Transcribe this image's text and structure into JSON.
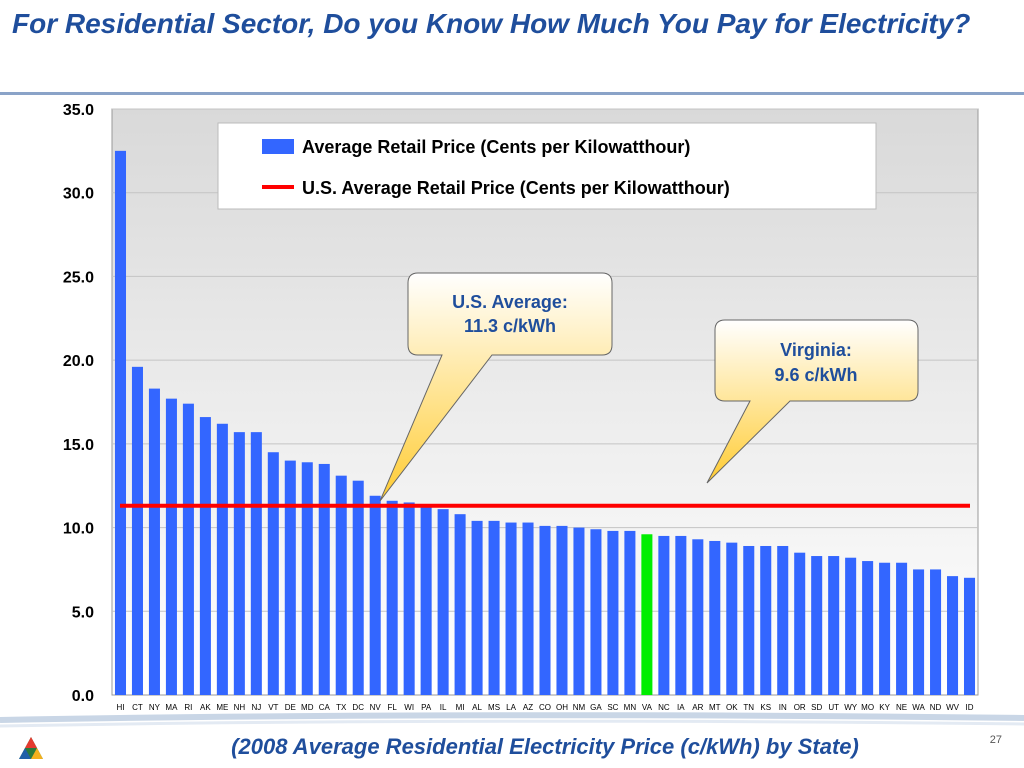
{
  "slide": {
    "title": "For Residential Sector, Do you Know How Much You Pay for Electricity?",
    "footer": "(2008 Average Residential Electricity Price (c/kWh) by State)",
    "page_number": "27"
  },
  "chart_data": {
    "type": "bar",
    "categories": [
      "HI",
      "CT",
      "NY",
      "MA",
      "RI",
      "AK",
      "ME",
      "NH",
      "NJ",
      "VT",
      "DE",
      "MD",
      "CA",
      "TX",
      "DC",
      "NV",
      "FL",
      "WI",
      "PA",
      "IL",
      "MI",
      "AL",
      "MS",
      "LA",
      "AZ",
      "CO",
      "OH",
      "NM",
      "GA",
      "SC",
      "MN",
      "VA",
      "NC",
      "IA",
      "AR",
      "MT",
      "OK",
      "TN",
      "KS",
      "IN",
      "OR",
      "SD",
      "UT",
      "WY",
      "MO",
      "KY",
      "NE",
      "WA",
      "ND",
      "WV",
      "ID"
    ],
    "series": [
      {
        "name": "Average Retail Price (Cents per Kilowatthour)",
        "color": "#3366ff",
        "values": [
          32.5,
          19.6,
          18.3,
          17.7,
          17.4,
          16.6,
          16.2,
          15.7,
          15.7,
          14.5,
          14.0,
          13.9,
          13.8,
          13.1,
          12.8,
          11.9,
          11.6,
          11.5,
          11.3,
          11.1,
          10.8,
          10.4,
          10.4,
          10.3,
          10.3,
          10.1,
          10.1,
          10.0,
          9.9,
          9.8,
          9.8,
          9.6,
          9.5,
          9.5,
          9.3,
          9.2,
          9.1,
          8.9,
          8.9,
          8.9,
          8.5,
          8.3,
          8.3,
          8.2,
          8.0,
          7.9,
          7.9,
          7.5,
          7.5,
          7.1,
          7.0
        ]
      },
      {
        "name": "U.S. Average Retail Price (Cents per Kilowatthour)",
        "color": "#ff0000",
        "value": 11.3
      }
    ],
    "highlight": {
      "category": "VA",
      "color": "#00ee00"
    },
    "ylim": [
      0,
      35
    ],
    "yticks": [
      "0.0",
      "5.0",
      "10.0",
      "15.0",
      "20.0",
      "25.0",
      "30.0",
      "35.0"
    ],
    "grid": true,
    "legend_position": "top",
    "annotations": [
      {
        "line1": "U.S. Average:",
        "line2": "11.3 c/kWh"
      },
      {
        "line1": "Virginia:",
        "line2": "9.6 c/kWh"
      }
    ]
  }
}
